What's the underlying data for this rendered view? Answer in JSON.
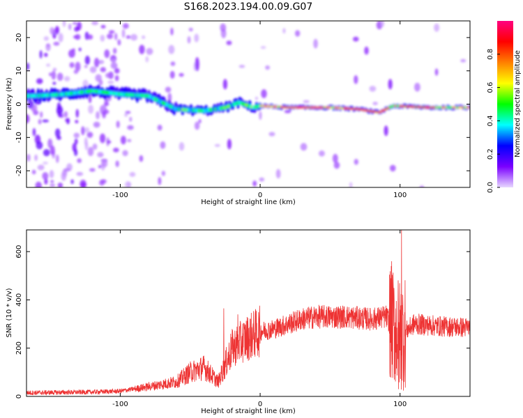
{
  "figure": {
    "title": "S168.2023.194.00.09.G07"
  },
  "chart_data": [
    {
      "type": "heatmap",
      "xlabel": "Height of straight line (km)",
      "ylabel": "Frequency (Hz)",
      "xlim": [
        -167,
        150
      ],
      "ylim": [
        -25,
        25
      ],
      "xticks": [
        -100,
        0,
        100
      ],
      "yticks": [
        -20,
        -10,
        0,
        10,
        20
      ],
      "colorbar": {
        "label": "Normalized spectral amplitude",
        "range": [
          0.0,
          1.0
        ],
        "ticks": [
          0.0,
          0.2,
          0.4,
          0.6,
          0.8
        ],
        "colors": [
          "#e8d8ff",
          "#7a00ff",
          "#0000ff",
          "#00ffff",
          "#00ff00",
          "#ffff00",
          "#ff8000",
          "#ff0000",
          "#ff0080"
        ]
      },
      "ridge": [
        {
          "x": -160,
          "freq": 2.5
        },
        {
          "x": -140,
          "freq": 3.0
        },
        {
          "x": -120,
          "freq": 4.0
        },
        {
          "x": -100,
          "freq": 3.0
        },
        {
          "x": -80,
          "freq": 2.5
        },
        {
          "x": -60,
          "freq": -1.5
        },
        {
          "x": -40,
          "freq": -2.0
        },
        {
          "x": -25,
          "freq": -1.0
        },
        {
          "x": -15,
          "freq": 0.5
        },
        {
          "x": -5,
          "freq": -1.0
        },
        {
          "x": 0,
          "freq": -0.5
        },
        {
          "x": 20,
          "freq": -1.0
        },
        {
          "x": 50,
          "freq": -1.0
        },
        {
          "x": 70,
          "freq": -1.5
        },
        {
          "x": 85,
          "freq": -2.5
        },
        {
          "x": 95,
          "freq": -0.5
        },
        {
          "x": 120,
          "freq": -1.0
        },
        {
          "x": 150,
          "freq": -1.0
        }
      ]
    },
    {
      "type": "line",
      "xlabel": "Height of straight line (km)",
      "ylabel": "SNR (10 * v/v)",
      "xlim": [
        -167,
        150
      ],
      "ylim": [
        0,
        690
      ],
      "xticks": [
        -100,
        0,
        100
      ],
      "yticks": [
        0,
        200,
        400,
        600
      ],
      "color": "#ee3333",
      "envelope": [
        {
          "x": -167,
          "y": 15
        },
        {
          "x": -120,
          "y": 18
        },
        {
          "x": -100,
          "y": 22
        },
        {
          "x": -80,
          "y": 40
        },
        {
          "x": -60,
          "y": 60
        },
        {
          "x": -50,
          "y": 100
        },
        {
          "x": -40,
          "y": 120
        },
        {
          "x": -30,
          "y": 60
        },
        {
          "x": -20,
          "y": 200
        },
        {
          "x": -10,
          "y": 240
        },
        {
          "x": 0,
          "y": 270
        },
        {
          "x": 10,
          "y": 280
        },
        {
          "x": 20,
          "y": 300
        },
        {
          "x": 30,
          "y": 320
        },
        {
          "x": 40,
          "y": 330
        },
        {
          "x": 60,
          "y": 330
        },
        {
          "x": 80,
          "y": 320
        },
        {
          "x": 90,
          "y": 330
        },
        {
          "x": 100,
          "y": 250
        },
        {
          "x": 110,
          "y": 300
        },
        {
          "x": 130,
          "y": 290
        },
        {
          "x": 150,
          "y": 285
        }
      ],
      "spikes": [
        {
          "x": -26,
          "y": 365
        },
        {
          "x": -16,
          "y": 340
        },
        {
          "x": 94,
          "y": 560
        },
        {
          "x": 99,
          "y": 30
        },
        {
          "x": 101,
          "y": 690
        },
        {
          "x": 103,
          "y": 60
        }
      ]
    }
  ]
}
